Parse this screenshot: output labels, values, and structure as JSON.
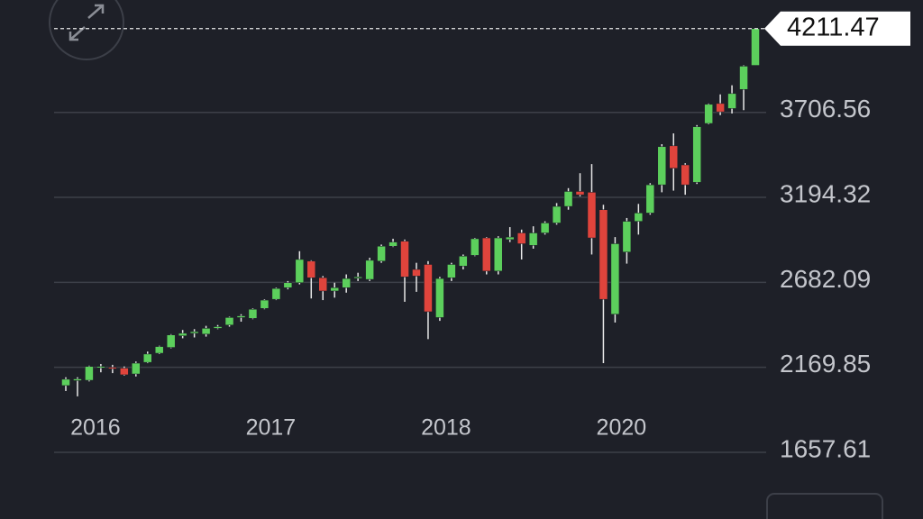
{
  "chart_data": {
    "type": "candlestick",
    "categories": [
      null,
      null,
      null,
      "2016",
      null,
      null,
      null,
      null,
      null,
      null,
      null,
      null,
      null,
      null,
      null,
      null,
      null,
      null,
      "2017",
      null,
      null,
      null,
      null,
      null,
      null,
      null,
      null,
      null,
      null,
      null,
      null,
      null,
      null,
      "2018",
      null,
      null,
      null,
      null,
      null,
      null,
      null,
      null,
      null,
      null,
      null,
      null,
      null,
      null,
      "2020",
      null,
      null,
      null,
      null,
      null,
      null,
      null,
      null,
      null,
      null,
      null
    ],
    "open": [
      2060,
      2090,
      2092,
      2170,
      2170,
      2165,
      2130,
      2200,
      2255,
      2290,
      2360,
      2375,
      2370,
      2405,
      2425,
      2470,
      2465,
      2525,
      2580,
      2650,
      2680,
      2810,
      2710,
      2630,
      2650,
      2710,
      2700,
      2810,
      2900,
      2930,
      2760,
      2790,
      2470,
      2710,
      2780,
      2845,
      2950,
      2750,
      2940,
      2980,
      2905,
      2980,
      3040,
      3140,
      3230,
      3225,
      3120,
      2490,
      2865,
      3050,
      3100,
      3270,
      3505,
      3390,
      3285,
      3640,
      3760,
      3730,
      3845,
      3990
    ],
    "high": [
      2110,
      2110,
      2180,
      2190,
      2185,
      2175,
      2205,
      2265,
      2300,
      2370,
      2395,
      2400,
      2420,
      2425,
      2475,
      2490,
      2525,
      2580,
      2650,
      2690,
      2870,
      2815,
      2720,
      2680,
      2730,
      2740,
      2830,
      2910,
      2945,
      2940,
      2800,
      2810,
      2715,
      2800,
      2850,
      2950,
      2955,
      2960,
      3015,
      3000,
      3020,
      3050,
      3160,
      3250,
      3340,
      3395,
      3150,
      2955,
      3070,
      3155,
      3280,
      3515,
      3580,
      3400,
      3630,
      3760,
      3815,
      3870,
      3990,
      4211.47
    ],
    "low": [
      2027,
      1995,
      2085,
      2140,
      2135,
      2120,
      2115,
      2195,
      2250,
      2285,
      2345,
      2350,
      2355,
      2400,
      2415,
      2445,
      2460,
      2520,
      2575,
      2640,
      2670,
      2585,
      2575,
      2590,
      2620,
      2690,
      2690,
      2800,
      2895,
      2565,
      2625,
      2340,
      2450,
      2690,
      2760,
      2840,
      2730,
      2730,
      2925,
      2820,
      2885,
      2970,
      3030,
      3120,
      3200,
      2850,
      2195,
      2440,
      2795,
      2970,
      3090,
      3225,
      3235,
      3210,
      3275,
      3635,
      3690,
      3700,
      3720,
      3990
    ],
    "close": [
      2098,
      2100,
      2175,
      2175,
      2165,
      2125,
      2195,
      2250,
      2295,
      2365,
      2375,
      2385,
      2405,
      2415,
      2470,
      2480,
      2520,
      2575,
      2645,
      2680,
      2820,
      2710,
      2630,
      2650,
      2705,
      2715,
      2815,
      2900,
      2925,
      2715,
      2720,
      2505,
      2705,
      2790,
      2840,
      2945,
      2750,
      2950,
      2955,
      2915,
      2980,
      3040,
      3140,
      3230,
      3210,
      2950,
      2580,
      2915,
      3050,
      3100,
      3270,
      3500,
      3370,
      3270,
      3620,
      3755,
      3710,
      3820,
      3985,
      4211.47
    ],
    "up_color": "#5ccf5c",
    "down_color": "#e0443c",
    "ylim": [
      1657.61,
      4384
    ],
    "yticks": [
      1657.61,
      2169.85,
      2682.09,
      3194.32,
      3706.56
    ],
    "grid": true
  }
}
